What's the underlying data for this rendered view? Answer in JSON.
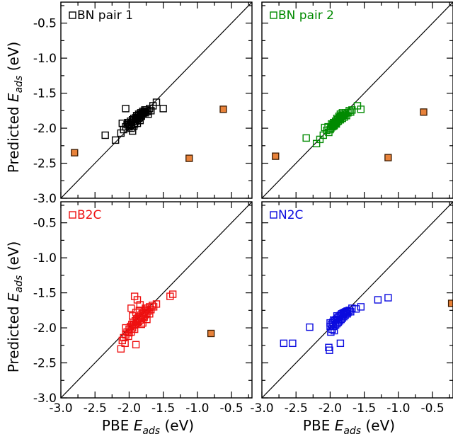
{
  "figure": {
    "xlabel_main": "PBE",
    "ylabel_main": "Predicted",
    "axis_symbol": "E",
    "axis_subscript": "ads",
    "axis_unit": "(eV)"
  },
  "chart_data": [
    {
      "type": "scatter",
      "title": "",
      "xlabel": "PBE E_ads (eV)",
      "ylabel": "Predicted E_ads (eV)",
      "xlim": [
        -3.0,
        -0.2
      ],
      "ylim": [
        -3.0,
        -0.2
      ],
      "xticks": [
        -3.0,
        -2.5,
        -2.0,
        -1.5,
        -1.0,
        -0.5
      ],
      "yticks": [
        -0.5,
        -1.0,
        -1.5,
        -2.0,
        -2.5,
        -3.0
      ],
      "tick_labels_x": [
        "-3.0",
        "-2.5",
        "-2.0",
        "-1.5",
        "-1.0",
        "-0.5"
      ],
      "tick_labels_y": [
        "-0.5",
        "-1.0",
        "-1.5",
        "-2.0",
        "-2.5",
        "-3.0"
      ],
      "grid": false,
      "parity_line": true,
      "legend_placement": "top-left",
      "series": [
        {
          "name": "BN pair 1",
          "color": "#000000",
          "marker": "open-square",
          "x": [
            -2.35,
            -2.2,
            -2.12,
            -2.08,
            -2.05,
            -2.03,
            -2.02,
            -2.0,
            -1.99,
            -1.98,
            -1.97,
            -1.96,
            -1.95,
            -1.94,
            -1.93,
            -1.92,
            -1.91,
            -1.9,
            -1.89,
            -1.88,
            -1.87,
            -1.86,
            -1.85,
            -1.84,
            -1.83,
            -1.82,
            -1.81,
            -1.8,
            -1.79,
            -1.78,
            -1.77,
            -1.76,
            -1.75,
            -1.73,
            -1.72,
            -1.7,
            -1.68,
            -1.65,
            -1.6,
            -1.5,
            -2.05,
            -2.1,
            -1.97,
            -1.95,
            -1.93,
            -1.9,
            -1.88,
            -1.86,
            -1.84,
            -1.82
          ],
          "y": [
            -2.1,
            -2.17,
            -2.07,
            -2.02,
            -1.98,
            -1.95,
            -1.92,
            -1.98,
            -1.94,
            -1.9,
            -1.96,
            -1.92,
            -1.88,
            -1.9,
            -1.86,
            -1.94,
            -1.88,
            -1.85,
            -1.82,
            -1.87,
            -1.83,
            -1.8,
            -1.85,
            -1.81,
            -1.78,
            -1.83,
            -1.79,
            -1.76,
            -1.8,
            -1.77,
            -1.74,
            -1.78,
            -1.74,
            -1.76,
            -1.8,
            -1.72,
            -1.75,
            -1.68,
            -1.63,
            -1.72,
            -1.72,
            -1.93,
            -2.0,
            -2.04,
            -1.97,
            -1.9,
            -1.93,
            -1.86,
            -1.89,
            -1.82
          ]
        },
        {
          "name": "",
          "color": "#e8823a",
          "marker": "filled-square",
          "x": [
            -2.8,
            -1.12,
            -0.62
          ],
          "y": [
            -2.35,
            -2.43,
            -1.73
          ]
        }
      ]
    },
    {
      "type": "scatter",
      "title": "",
      "xlabel": "PBE E_ads (eV)",
      "ylabel": "",
      "xlim": [
        -3.0,
        -0.2
      ],
      "ylim": [
        -3.0,
        -0.2
      ],
      "xticks": [
        -3.0,
        -2.5,
        -2.0,
        -1.5,
        -1.0,
        -0.5
      ],
      "yticks": [
        -0.5,
        -1.0,
        -1.5,
        -2.0,
        -2.5,
        -3.0
      ],
      "tick_labels_x": [
        "-3.0",
        "-2.5",
        "-2.0",
        "-1.5",
        "-1.0",
        "-0.5"
      ],
      "tick_labels_y": [],
      "grid": false,
      "parity_line": true,
      "legend_placement": "top-left",
      "series": [
        {
          "name": "BN pair 2",
          "color": "#008a00",
          "marker": "open-square",
          "x": [
            -2.35,
            -2.2,
            -2.15,
            -2.1,
            -2.08,
            -2.05,
            -2.03,
            -2.0,
            -1.98,
            -1.97,
            -1.96,
            -1.95,
            -1.94,
            -1.93,
            -1.92,
            -1.91,
            -1.9,
            -1.89,
            -1.88,
            -1.87,
            -1.86,
            -1.85,
            -1.84,
            -1.83,
            -1.82,
            -1.81,
            -1.8,
            -1.79,
            -1.78,
            -1.77,
            -1.76,
            -1.74,
            -1.72,
            -1.7,
            -1.68,
            -1.6,
            -1.55,
            -2.02,
            -1.99,
            -1.95,
            -1.92,
            -1.9,
            -1.87,
            -1.85,
            -1.82
          ],
          "y": [
            -2.14,
            -2.22,
            -2.16,
            -2.1,
            -1.99,
            -2.03,
            -1.98,
            -2.02,
            -1.94,
            -1.98,
            -1.95,
            -1.92,
            -1.96,
            -1.93,
            -1.9,
            -1.94,
            -1.91,
            -1.88,
            -1.9,
            -1.87,
            -1.85,
            -1.88,
            -1.84,
            -1.82,
            -1.86,
            -1.82,
            -1.8,
            -1.84,
            -1.8,
            -1.78,
            -1.82,
            -1.78,
            -1.75,
            -1.77,
            -1.74,
            -1.68,
            -1.73,
            -2.06,
            -2.0,
            -1.97,
            -1.93,
            -1.86,
            -1.83,
            -1.8,
            -1.78
          ]
        },
        {
          "name": "",
          "color": "#e8823a",
          "marker": "filled-square",
          "x": [
            -2.8,
            -1.15,
            -0.63
          ],
          "y": [
            -2.4,
            -2.42,
            -1.77
          ]
        }
      ]
    },
    {
      "type": "scatter",
      "title": "",
      "xlabel": "PBE E_ads (eV)",
      "ylabel": "Predicted E_ads (eV)",
      "xlim": [
        -3.0,
        -0.2
      ],
      "ylim": [
        -3.0,
        -0.2
      ],
      "xticks": [
        -3.0,
        -2.5,
        -2.0,
        -1.5,
        -1.0,
        -0.5
      ],
      "yticks": [
        -0.5,
        -1.0,
        -1.5,
        -2.0,
        -2.5,
        -3.0
      ],
      "tick_labels_x": [
        "-3.0",
        "-2.5",
        "-2.0",
        "-1.5",
        "-1.0",
        "-0.5"
      ],
      "tick_labels_y": [
        "-0.5",
        "-1.0",
        "-1.5",
        "-2.0",
        "-2.5",
        "-3.0"
      ],
      "grid": false,
      "parity_line": true,
      "legend_placement": "top-left",
      "series": [
        {
          "name": "B2C",
          "color": "#ee1111",
          "marker": "open-square",
          "x": [
            -2.12,
            -2.1,
            -2.08,
            -2.06,
            -2.05,
            -2.03,
            -2.01,
            -2.0,
            -1.98,
            -1.97,
            -1.96,
            -1.95,
            -1.94,
            -1.93,
            -1.92,
            -1.91,
            -1.9,
            -1.89,
            -1.88,
            -1.87,
            -1.86,
            -1.85,
            -1.84,
            -1.83,
            -1.82,
            -1.81,
            -1.8,
            -1.79,
            -1.78,
            -1.77,
            -1.76,
            -1.75,
            -1.74,
            -1.73,
            -1.72,
            -1.7,
            -1.68,
            -1.66,
            -1.64,
            -1.6,
            -1.4,
            -1.36,
            -1.92,
            -1.88,
            -1.84,
            -1.8,
            -1.76,
            -2.05,
            -2.0,
            -1.95,
            -1.9,
            -1.85,
            -1.82,
            -1.78,
            -1.74,
            -1.7,
            -1.9,
            -1.97
          ],
          "y": [
            -2.3,
            -2.18,
            -2.14,
            -2.22,
            -2.1,
            -2.06,
            -2.12,
            -2.02,
            -1.98,
            -2.06,
            -1.95,
            -2.0,
            -1.92,
            -1.96,
            -2.02,
            -1.9,
            -1.95,
            -1.88,
            -1.93,
            -1.86,
            -1.91,
            -1.84,
            -1.89,
            -1.82,
            -1.87,
            -1.8,
            -1.85,
            -1.78,
            -1.83,
            -1.76,
            -1.81,
            -1.74,
            -1.79,
            -1.72,
            -1.76,
            -1.7,
            -1.74,
            -1.68,
            -1.7,
            -1.66,
            -1.55,
            -1.52,
            -1.55,
            -1.6,
            -1.67,
            -1.93,
            -1.72,
            -2.0,
            -2.07,
            -1.83,
            -1.78,
            -1.75,
            -1.95,
            -1.85,
            -1.88,
            -1.8,
            -2.24,
            -1.72
          ]
        },
        {
          "name": "",
          "color": "#e8823a",
          "marker": "filled-square",
          "x": [
            -0.8
          ],
          "y": [
            -2.08
          ]
        }
      ]
    },
    {
      "type": "scatter",
      "title": "",
      "xlabel": "PBE E_ads (eV)",
      "ylabel": "",
      "xlim": [
        -3.0,
        -0.2
      ],
      "ylim": [
        -3.0,
        -0.2
      ],
      "xticks": [
        -3.0,
        -2.5,
        -2.0,
        -1.5,
        -1.0,
        -0.5
      ],
      "yticks": [
        -0.5,
        -1.0,
        -1.5,
        -2.0,
        -2.5,
        -3.0
      ],
      "tick_labels_x": [
        "-3.0",
        "-2.5",
        "-2.0",
        "-1.5",
        "-1.0",
        "-0.5"
      ],
      "tick_labels_y": [],
      "grid": false,
      "parity_line": true,
      "legend_placement": "top-left",
      "series": [
        {
          "name": "N2C",
          "color": "#0a0adf",
          "marker": "open-square",
          "x": [
            -2.68,
            -2.55,
            -2.3,
            -2.02,
            -2.01,
            -2.0,
            -1.99,
            -1.98,
            -1.97,
            -1.96,
            -1.95,
            -1.94,
            -1.93,
            -1.92,
            -1.91,
            -1.9,
            -1.89,
            -1.88,
            -1.87,
            -1.86,
            -1.85,
            -1.84,
            -1.83,
            -1.82,
            -1.81,
            -1.8,
            -1.79,
            -1.78,
            -1.77,
            -1.76,
            -1.75,
            -1.74,
            -1.72,
            -1.7,
            -1.68,
            -1.62,
            -1.55,
            -1.3,
            -1.15,
            -1.85,
            -2.0,
            -1.95,
            -1.9,
            -1.8,
            -1.75
          ],
          "y": [
            -2.22,
            -2.22,
            -1.99,
            -2.28,
            -2.32,
            -1.98,
            -2.06,
            -1.95,
            -2.02,
            -1.92,
            -1.98,
            -2.04,
            -1.9,
            -1.96,
            -1.88,
            -1.94,
            -1.86,
            -1.92,
            -1.84,
            -1.9,
            -1.82,
            -1.88,
            -1.8,
            -1.86,
            -1.79,
            -1.84,
            -1.78,
            -1.82,
            -1.77,
            -1.8,
            -1.76,
            -1.78,
            -1.75,
            -1.77,
            -1.72,
            -1.73,
            -1.7,
            -1.6,
            -1.57,
            -2.22,
            -1.93,
            -1.89,
            -1.83,
            -1.81,
            -1.8
          ]
        },
        {
          "name": "",
          "color": "#e8823a",
          "marker": "filled-square",
          "x": [
            -0.22
          ],
          "y": [
            -1.65
          ]
        }
      ]
    }
  ]
}
